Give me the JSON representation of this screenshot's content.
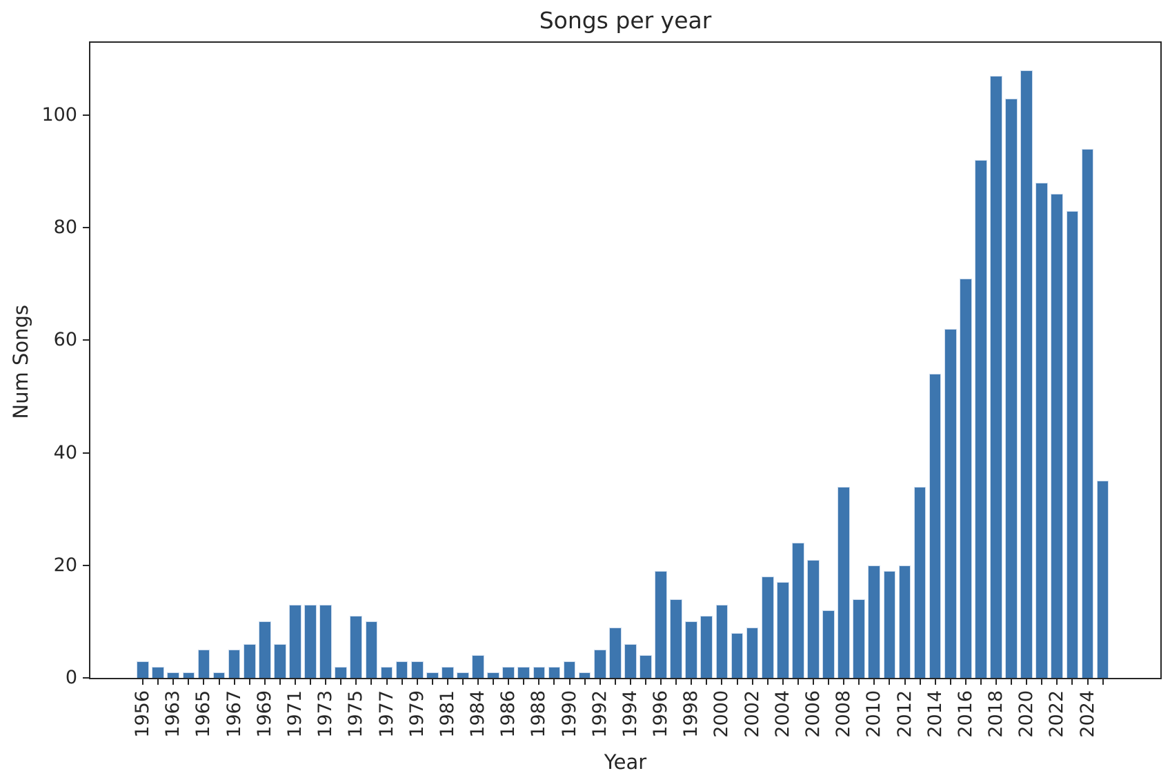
{
  "chart_data": {
    "type": "bar",
    "title": "Songs per year",
    "xlabel": "Year",
    "ylabel": "Num Songs",
    "ylim": [
      0,
      113
    ],
    "yticks": [
      0,
      20,
      40,
      60,
      80,
      100
    ],
    "grid": false,
    "legend": "none",
    "bar_color": "#3d76af",
    "bar_edge_color": "#cddcee",
    "axis_color": "#262626",
    "x_tick_label_rotation_deg": 90,
    "x_labels_shown_every_n_bars": 2,
    "bars": [
      {
        "label": "1956",
        "value": 3
      },
      {
        "label": "",
        "value": 2
      },
      {
        "label": "1963",
        "value": 1
      },
      {
        "label": "",
        "value": 1
      },
      {
        "label": "1965",
        "value": 5
      },
      {
        "label": "",
        "value": 1
      },
      {
        "label": "1967",
        "value": 5
      },
      {
        "label": "",
        "value": 6
      },
      {
        "label": "1969",
        "value": 10
      },
      {
        "label": "",
        "value": 6
      },
      {
        "label": "1971",
        "value": 13
      },
      {
        "label": "",
        "value": 13
      },
      {
        "label": "1973",
        "value": 13
      },
      {
        "label": "",
        "value": 2
      },
      {
        "label": "1975",
        "value": 11
      },
      {
        "label": "",
        "value": 10
      },
      {
        "label": "1977",
        "value": 2
      },
      {
        "label": "",
        "value": 3
      },
      {
        "label": "1979",
        "value": 3
      },
      {
        "label": "",
        "value": 1
      },
      {
        "label": "1981",
        "value": 2
      },
      {
        "label": "",
        "value": 1
      },
      {
        "label": "1984",
        "value": 4
      },
      {
        "label": "",
        "value": 1
      },
      {
        "label": "1986",
        "value": 2
      },
      {
        "label": "",
        "value": 2
      },
      {
        "label": "1988",
        "value": 2
      },
      {
        "label": "",
        "value": 2
      },
      {
        "label": "1990",
        "value": 3
      },
      {
        "label": "",
        "value": 1
      },
      {
        "label": "1992",
        "value": 5
      },
      {
        "label": "",
        "value": 9
      },
      {
        "label": "1994",
        "value": 6
      },
      {
        "label": "",
        "value": 4
      },
      {
        "label": "1996",
        "value": 19
      },
      {
        "label": "",
        "value": 14
      },
      {
        "label": "1998",
        "value": 10
      },
      {
        "label": "",
        "value": 11
      },
      {
        "label": "2000",
        "value": 13
      },
      {
        "label": "",
        "value": 8
      },
      {
        "label": "2002",
        "value": 9
      },
      {
        "label": "",
        "value": 18
      },
      {
        "label": "2004",
        "value": 17
      },
      {
        "label": "",
        "value": 24
      },
      {
        "label": "2006",
        "value": 21
      },
      {
        "label": "",
        "value": 12
      },
      {
        "label": "2008",
        "value": 34
      },
      {
        "label": "",
        "value": 14
      },
      {
        "label": "2010",
        "value": 20
      },
      {
        "label": "",
        "value": 19
      },
      {
        "label": "2012",
        "value": 20
      },
      {
        "label": "",
        "value": 34
      },
      {
        "label": "2014",
        "value": 54
      },
      {
        "label": "",
        "value": 62
      },
      {
        "label": "2016",
        "value": 71
      },
      {
        "label": "",
        "value": 92
      },
      {
        "label": "2018",
        "value": 107
      },
      {
        "label": "",
        "value": 103
      },
      {
        "label": "2020",
        "value": 108
      },
      {
        "label": "",
        "value": 88
      },
      {
        "label": "2022",
        "value": 86
      },
      {
        "label": "",
        "value": 83
      },
      {
        "label": "2024",
        "value": 94
      },
      {
        "label": "",
        "value": 35
      }
    ]
  }
}
